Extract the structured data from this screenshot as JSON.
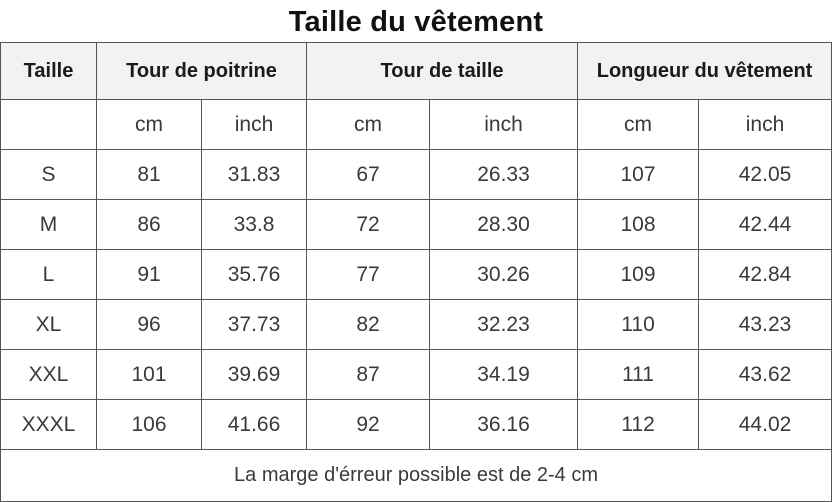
{
  "title": "Taille du vêtement",
  "headers": {
    "size": "Taille",
    "bust": "Tour de poitrine",
    "waist": "Tour de taille",
    "length": "Longueur du vêtement"
  },
  "units": {
    "cm": "cm",
    "inch": "inch"
  },
  "rows": [
    {
      "size": "S",
      "bust_cm": "81",
      "bust_in": "31.83",
      "waist_cm": "67",
      "waist_in": "26.33",
      "length_cm": "107",
      "length_in": "42.05"
    },
    {
      "size": "M",
      "bust_cm": "86",
      "bust_in": "33.8",
      "waist_cm": "72",
      "waist_in": "28.30",
      "length_cm": "108",
      "length_in": "42.44"
    },
    {
      "size": "L",
      "bust_cm": "91",
      "bust_in": "35.76",
      "waist_cm": "77",
      "waist_in": "30.26",
      "length_cm": "109",
      "length_in": "42.84"
    },
    {
      "size": "XL",
      "bust_cm": "96",
      "bust_in": "37.73",
      "waist_cm": "82",
      "waist_in": "32.23",
      "length_cm": "110",
      "length_in": "43.23"
    },
    {
      "size": "XXL",
      "bust_cm": "101",
      "bust_in": "39.69",
      "waist_cm": "87",
      "waist_in": "34.19",
      "length_cm": "111",
      "length_in": "43.62"
    },
    {
      "size": "XXXL",
      "bust_cm": "106",
      "bust_in": "41.66",
      "waist_cm": "92",
      "waist_in": "36.16",
      "length_cm": "112",
      "length_in": "44.02"
    }
  ],
  "footer_note": "La marge d'érreur possible est de 2-4 cm"
}
